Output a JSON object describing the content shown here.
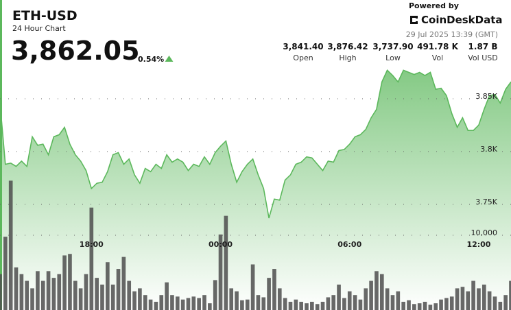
{
  "header": {
    "title": "ETH-USD",
    "subtitle": "24 Hour Chart",
    "price": "3,862.05",
    "change": "0.54%",
    "powered_by": "Powered by",
    "brand": "CoinDeskData",
    "timestamp": "29 Jul 2025 13:39 (GMT)",
    "stats": [
      {
        "value": "3,841.40",
        "label": "Open"
      },
      {
        "value": "3,876.42",
        "label": "High"
      },
      {
        "value": "3,737.90",
        "label": "Low"
      },
      {
        "value": "491.78 K",
        "label": "Vol"
      },
      {
        "value": "1.87 B",
        "label": "Vol USD"
      }
    ]
  },
  "chart_data": {
    "type": "area",
    "grid": true,
    "xlim": [
      0,
      95
    ],
    "xticks": [
      {
        "value": 17,
        "label": "18:00"
      },
      {
        "value": 41,
        "label": "00:00"
      },
      {
        "value": 65,
        "label": "06:00"
      },
      {
        "value": 89,
        "label": "12:00"
      }
    ],
    "ylim": [
      3650,
      3943.5
    ],
    "yticks": [
      {
        "value": 3750,
        "label": "3.75K"
      },
      {
        "value": 3800,
        "label": "3.8K"
      },
      {
        "value": 3850,
        "label": "3.85K"
      }
    ],
    "y2lim": [
      0,
      40000
    ],
    "y2ticks": [
      {
        "value": 10000,
        "label": "10,000"
      }
    ],
    "series": [
      {
        "color": "#5cb85c",
        "values": [
          3846,
          3788,
          3789,
          3786,
          3791,
          3786,
          3814,
          3806,
          3807,
          3797,
          3814,
          3816,
          3823,
          3807,
          3797,
          3791,
          3782,
          3765,
          3770,
          3771,
          3781,
          3797,
          3799,
          3788,
          3793,
          3778,
          3770,
          3784,
          3781,
          3788,
          3784,
          3797,
          3790,
          3793,
          3790,
          3782,
          3788,
          3786,
          3795,
          3788,
          3799,
          3805,
          3810,
          3788,
          3771,
          3781,
          3788,
          3793,
          3778,
          3765,
          3737,
          3755,
          3754,
          3773,
          3778,
          3788,
          3790,
          3795,
          3794,
          3788,
          3782,
          3791,
          3790,
          3801,
          3802,
          3807,
          3814,
          3816,
          3821,
          3832,
          3840,
          3866,
          3877,
          3872,
          3866,
          3877,
          3875,
          3873,
          3875,
          3872,
          3875,
          3859,
          3860,
          3853,
          3836,
          3823,
          3832,
          3820,
          3820,
          3825,
          3840,
          3853,
          3854,
          3846,
          3859,
          3866
        ]
      },
      {
        "axis": "y2",
        "color": "#4d4d4d",
        "values": [
          4800,
          9800,
          17300,
          5700,
          4800,
          3900,
          2900,
          5200,
          3900,
          5200,
          4300,
          4800,
          7300,
          7500,
          3900,
          2900,
          4800,
          13700,
          4300,
          3400,
          6400,
          3400,
          5500,
          7100,
          3900,
          2500,
          2900,
          2000,
          1400,
          1100,
          2000,
          3700,
          2000,
          1800,
          1400,
          1600,
          1800,
          1600,
          2000,
          900,
          4000,
          10100,
          12600,
          2900,
          2500,
          1300,
          1400,
          6100,
          2000,
          1700,
          4300,
          5500,
          2900,
          1600,
          1100,
          1400,
          1100,
          900,
          1100,
          800,
          1100,
          1700,
          2000,
          3400,
          1600,
          2500,
          2000,
          1400,
          2900,
          3900,
          5200,
          4800,
          2900,
          2000,
          2500,
          1100,
          1300,
          800,
          900,
          1100,
          700,
          900,
          1400,
          1600,
          1800,
          2900,
          3100,
          2500,
          3900,
          2900,
          3400,
          2500,
          1800,
          1100,
          2000,
          3900
        ]
      }
    ]
  }
}
